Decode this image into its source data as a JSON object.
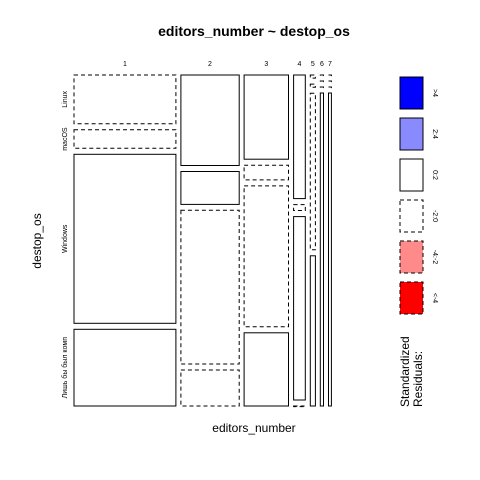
{
  "chart_data": {
    "type": "mosaic",
    "title": "editors_number ~ destop_os",
    "xlabel": "editors_number",
    "ylabel": "destop_os",
    "x_categories": [
      "1",
      "2",
      "3",
      "4",
      "5",
      "6",
      "7"
    ],
    "y_categories": [
      "Linux",
      "macOS",
      "Windows",
      "Лишь бы был комп"
    ],
    "column_proportions": [
      0.383,
      0.219,
      0.167,
      0.044,
      0.019,
      0.012,
      0.011
    ],
    "cell_proportions": [
      [
        0.156,
        0.059,
        0.54,
        0.245
      ],
      [
        0.289,
        0.105,
        0.491,
        0.115
      ],
      [
        0.269,
        0.047,
        0.45,
        0.234
      ],
      [
        0.395,
        0.019,
        0.586,
        0.0
      ],
      [
        0.01,
        0.01,
        0.5,
        0.48
      ],
      [
        0.0,
        0.0,
        0.0,
        1.0
      ],
      [
        0.0,
        0.0,
        0.0,
        1.0
      ]
    ],
    "cell_residual_class": [
      [
        "-2:0",
        "-2:0",
        "0:2",
        "0:2"
      ],
      [
        "0:2",
        "0:2",
        "-2:0",
        "-2:0"
      ],
      [
        "0:2",
        "-2:0",
        "-2:0",
        "0:2"
      ],
      [
        "0:2",
        "-2:0",
        "0:2",
        "-2:0"
      ],
      [
        "-2:0",
        "-2:0",
        "-2:0",
        "0:2"
      ],
      [
        "-2:0",
        "-2:0",
        "-2:0",
        "0:2"
      ],
      [
        "-2:0",
        "-2:0",
        "-2:0",
        "0:2"
      ]
    ],
    "legend": {
      "title": "Standardized Residuals:",
      "position": "right",
      "entries": [
        {
          "label": ">4",
          "fill": "#0000ff",
          "dashed": false
        },
        {
          "label": "2:4",
          "fill": "#8a8aff",
          "dashed": false
        },
        {
          "label": "0:2",
          "fill": "#ffffff",
          "dashed": false
        },
        {
          "label": "-2:0",
          "fill": "#ffffff",
          "dashed": true
        },
        {
          "label": "-4:-2",
          "fill": "#ff8a8a",
          "dashed": true
        },
        {
          "label": "<-4",
          "fill": "#ff0000",
          "dashed": true
        }
      ]
    }
  }
}
